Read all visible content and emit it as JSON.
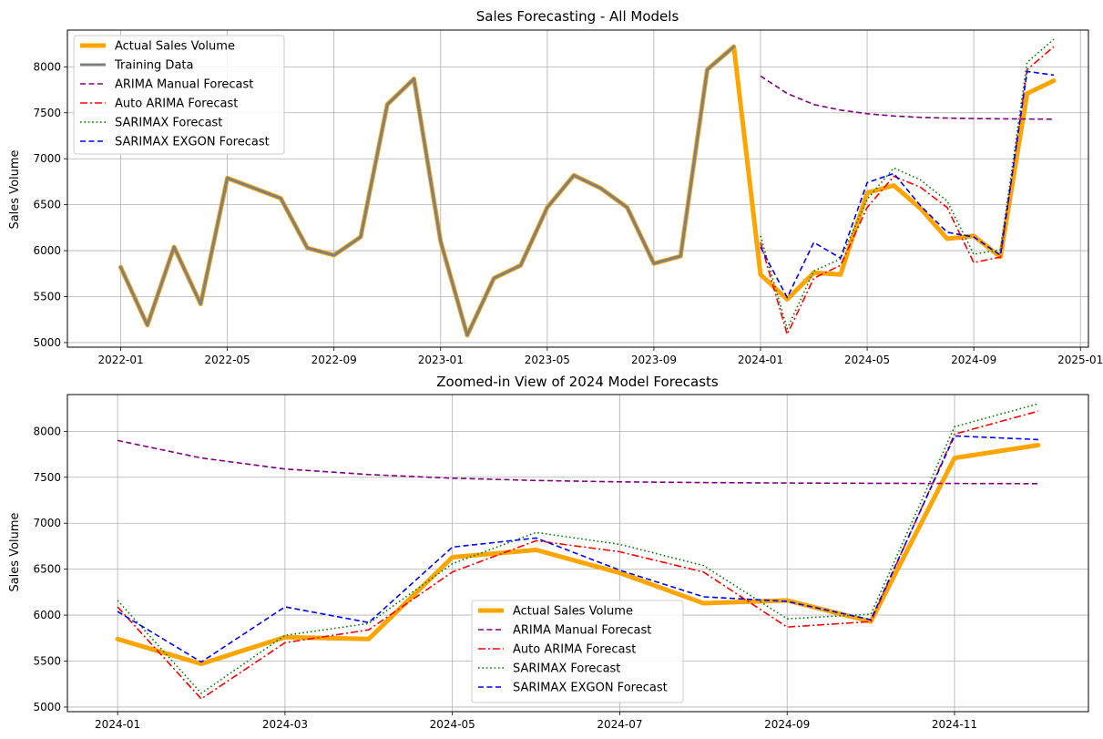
{
  "chart_data": [
    {
      "type": "line",
      "title": "Sales Forecasting - All Models",
      "xlabel": "",
      "ylabel": "Sales Volume",
      "ylim": [
        4950,
        8400
      ],
      "xlim": [
        -2.0,
        36.3
      ],
      "grid": true,
      "legend_position": "top-left",
      "x_ticks": [
        {
          "pos": 0,
          "label": "2022-01"
        },
        {
          "pos": 4,
          "label": "2022-05"
        },
        {
          "pos": 8,
          "label": "2022-09"
        },
        {
          "pos": 12,
          "label": "2023-01"
        },
        {
          "pos": 16,
          "label": "2023-05"
        },
        {
          "pos": 20,
          "label": "2023-09"
        },
        {
          "pos": 24,
          "label": "2024-01"
        },
        {
          "pos": 28,
          "label": "2024-05"
        },
        {
          "pos": 32,
          "label": "2024-09"
        },
        {
          "pos": 36,
          "label": "2025-01"
        }
      ],
      "y_ticks": [
        5000,
        5500,
        6000,
        6500,
        7000,
        7500,
        8000
      ],
      "series": [
        {
          "name": "Actual Sales Volume",
          "color": "#FFA500",
          "dash": "solid",
          "width": 5,
          "legend": true,
          "x": [
            0,
            1,
            2,
            3,
            4,
            5,
            6,
            7,
            8,
            9,
            10,
            11,
            12,
            13,
            14,
            15,
            16,
            17,
            18,
            19,
            20,
            21,
            22,
            23,
            24,
            25,
            26,
            27,
            28,
            29,
            30,
            31,
            32,
            33,
            34,
            35
          ],
          "values": [
            5820,
            5190,
            6040,
            5420,
            6790,
            6680,
            6570,
            6030,
            5950,
            6150,
            7590,
            7870,
            6100,
            5080,
            5700,
            5840,
            6470,
            6820,
            6680,
            6470,
            5860,
            5940,
            7970,
            8220,
            5740,
            5470,
            5760,
            5740,
            6630,
            6710,
            6460,
            6130,
            6160,
            5930,
            7710,
            7850
          ]
        },
        {
          "name": "Training Data",
          "color": "#808080",
          "dash": "solid",
          "width": 3,
          "legend": true,
          "x": [
            0,
            1,
            2,
            3,
            4,
            5,
            6,
            7,
            8,
            9,
            10,
            11,
            12,
            13,
            14,
            15,
            16,
            17,
            18,
            19,
            20,
            21,
            22,
            23
          ],
          "values": [
            5820,
            5190,
            6040,
            5420,
            6790,
            6680,
            6570,
            6030,
            5950,
            6150,
            7590,
            7870,
            6100,
            5080,
            5700,
            5840,
            6470,
            6820,
            6680,
            6470,
            5860,
            5940,
            7970,
            8220
          ]
        },
        {
          "name": "ARIMA Manual Forecast",
          "color": "#800080",
          "dash": "dashed",
          "width": 1.6,
          "legend": true,
          "x": [
            24,
            25,
            26,
            27,
            28,
            29,
            30,
            31,
            32,
            33,
            34,
            35
          ],
          "values": [
            7900,
            7710,
            7590,
            7530,
            7490,
            7465,
            7450,
            7442,
            7437,
            7434,
            7432,
            7430
          ]
        },
        {
          "name": "Auto ARIMA Forecast",
          "color": "#FF0000",
          "dash": "dashdot",
          "width": 1.6,
          "legend": true,
          "x": [
            24,
            25,
            26,
            27,
            28,
            29,
            30,
            31,
            32,
            33,
            34,
            35
          ],
          "values": [
            6090,
            5090,
            5700,
            5840,
            6470,
            6810,
            6690,
            6470,
            5870,
            5930,
            7970,
            8220
          ]
        },
        {
          "name": "SARIMAX Forecast",
          "color": "#008000",
          "dash": "dotted",
          "width": 1.6,
          "legend": true,
          "x": [
            24,
            25,
            26,
            27,
            28,
            29,
            30,
            31,
            32,
            33,
            34,
            35
          ],
          "values": [
            6160,
            5150,
            5780,
            5910,
            6560,
            6900,
            6770,
            6540,
            5960,
            6010,
            8050,
            8300
          ]
        },
        {
          "name": "SARIMAX EXGON Forecast",
          "color": "#0000FF",
          "dash": "dashed",
          "width": 1.6,
          "legend": true,
          "x": [
            24,
            25,
            26,
            27,
            28,
            29,
            30,
            31,
            32,
            33,
            34,
            35
          ],
          "values": [
            6040,
            5490,
            6090,
            5920,
            6740,
            6840,
            6490,
            6200,
            6150,
            5950,
            7950,
            7910
          ]
        }
      ]
    },
    {
      "type": "line",
      "title": "Zoomed-in View of 2024 Model Forecasts",
      "xlabel": "",
      "ylabel": "Sales Volume",
      "ylim": [
        4950,
        8400
      ],
      "xlim": [
        -0.6,
        11.6
      ],
      "grid": true,
      "legend_position": "lower-center",
      "x_ticks": [
        {
          "pos": 0,
          "label": "2024-01"
        },
        {
          "pos": 2,
          "label": "2024-03"
        },
        {
          "pos": 4,
          "label": "2024-05"
        },
        {
          "pos": 6,
          "label": "2024-07"
        },
        {
          "pos": 8,
          "label": "2024-09"
        },
        {
          "pos": 10,
          "label": "2024-11"
        }
      ],
      "y_ticks": [
        5000,
        5500,
        6000,
        6500,
        7000,
        7500,
        8000
      ],
      "series": [
        {
          "name": "Actual Sales Volume",
          "color": "#FFA500",
          "dash": "solid",
          "width": 5,
          "legend": true,
          "x": [
            0,
            1,
            2,
            3,
            4,
            5,
            6,
            7,
            8,
            9,
            10,
            11
          ],
          "values": [
            5740,
            5470,
            5760,
            5740,
            6630,
            6710,
            6460,
            6130,
            6160,
            5930,
            7710,
            7850
          ]
        },
        {
          "name": "ARIMA Manual Forecast",
          "color": "#800080",
          "dash": "dashed",
          "width": 1.6,
          "legend": true,
          "x": [
            0,
            1,
            2,
            3,
            4,
            5,
            6,
            7,
            8,
            9,
            10,
            11
          ],
          "values": [
            7900,
            7710,
            7590,
            7530,
            7490,
            7465,
            7450,
            7442,
            7437,
            7434,
            7432,
            7430
          ]
        },
        {
          "name": "Auto ARIMA Forecast",
          "color": "#FF0000",
          "dash": "dashdot",
          "width": 1.6,
          "legend": true,
          "x": [
            0,
            1,
            2,
            3,
            4,
            5,
            6,
            7,
            8,
            9,
            10,
            11
          ],
          "values": [
            6090,
            5090,
            5700,
            5840,
            6470,
            6810,
            6690,
            6470,
            5870,
            5930,
            7970,
            8220
          ]
        },
        {
          "name": "SARIMAX Forecast",
          "color": "#008000",
          "dash": "dotted",
          "width": 1.6,
          "legend": true,
          "x": [
            0,
            1,
            2,
            3,
            4,
            5,
            6,
            7,
            8,
            9,
            10,
            11
          ],
          "values": [
            6160,
            5150,
            5780,
            5910,
            6560,
            6900,
            6770,
            6540,
            5960,
            6010,
            8050,
            8300
          ]
        },
        {
          "name": "SARIMAX EXGON Forecast",
          "color": "#0000FF",
          "dash": "dashed",
          "width": 1.6,
          "legend": true,
          "x": [
            0,
            1,
            2,
            3,
            4,
            5,
            6,
            7,
            8,
            9,
            10,
            11
          ],
          "values": [
            6040,
            5490,
            6090,
            5920,
            6740,
            6840,
            6490,
            6200,
            6150,
            5950,
            7950,
            7910
          ]
        }
      ]
    }
  ]
}
